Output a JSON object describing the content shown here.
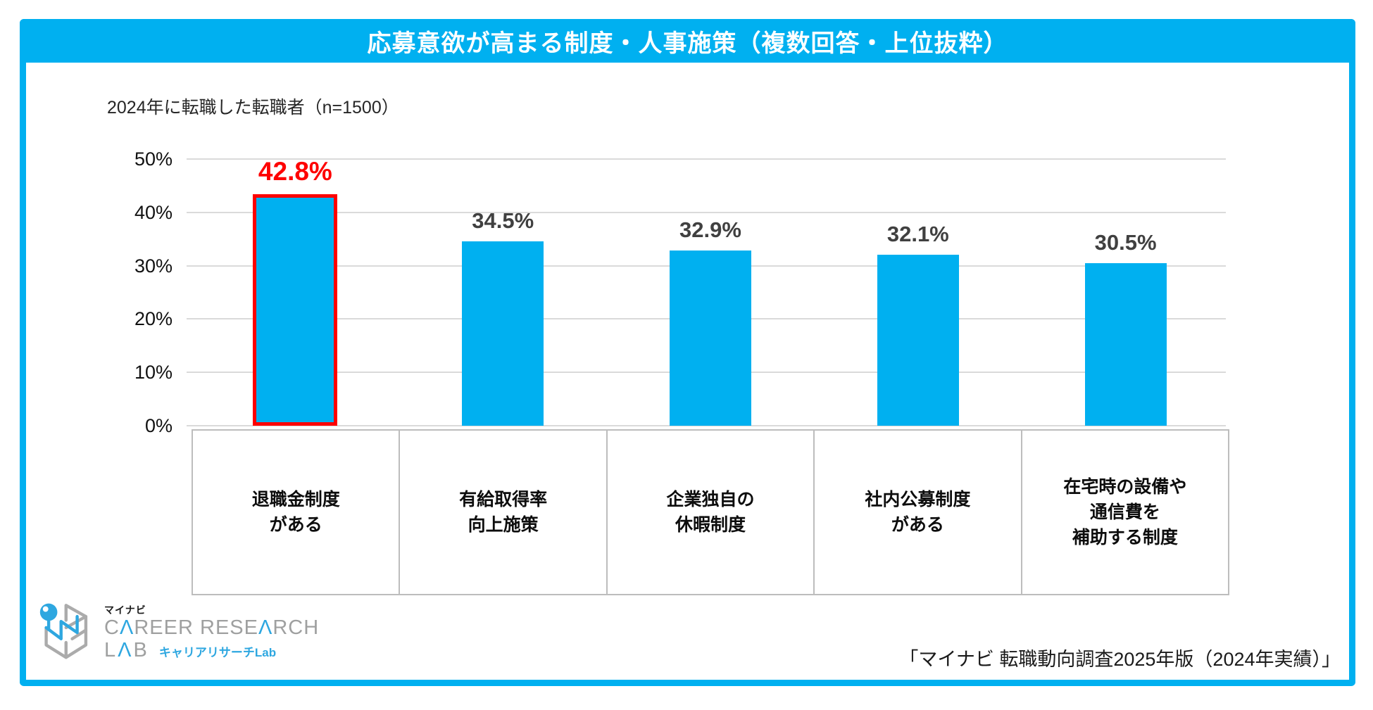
{
  "title": "応募意欲が高まる制度・人事施策（複数回答・上位抜粋）",
  "subtitle": "2024年に転職した転職者（n=1500）",
  "source": "「マイナビ 転職動向調査2025年版（2024年実績）」",
  "logo": {
    "brand": "マイナビ",
    "line1": "CAREER RESEARCH",
    "line2": "LAB",
    "jp_sub": "キャリアリサーチLab"
  },
  "colors": {
    "accent": "#00B0F0",
    "highlight": "#FE0000",
    "grid": "#DADADA",
    "value_label": "#404040",
    "logo_gray": "#9FA0A0",
    "logo_blue": "#2EA7E0"
  },
  "chart_data": {
    "type": "bar",
    "categories": [
      "退職金制度\nがある",
      "有給取得率\n向上施策",
      "企業独自の\n休暇制度",
      "社内公募制度\nがある",
      "在宅時の設備や\n通信費を\n補助する制度"
    ],
    "values": [
      42.8,
      34.5,
      32.9,
      32.1,
      30.5
    ],
    "value_labels": [
      "42.8%",
      "34.5%",
      "32.9%",
      "32.1%",
      "30.5%"
    ],
    "highlight_index": 0,
    "title": "応募意欲が高まる制度・人事施策（複数回答・上位抜粋）",
    "xlabel": "",
    "ylabel": "",
    "ylim": [
      0,
      50
    ],
    "yticks": [
      0,
      10,
      20,
      30,
      40,
      50
    ],
    "ytick_labels": [
      "0%",
      "10%",
      "20%",
      "30%",
      "40%",
      "50%"
    ],
    "grid": true,
    "legend": false,
    "bar_color": "#00B0F0",
    "highlight_border_color": "#FE0000"
  }
}
